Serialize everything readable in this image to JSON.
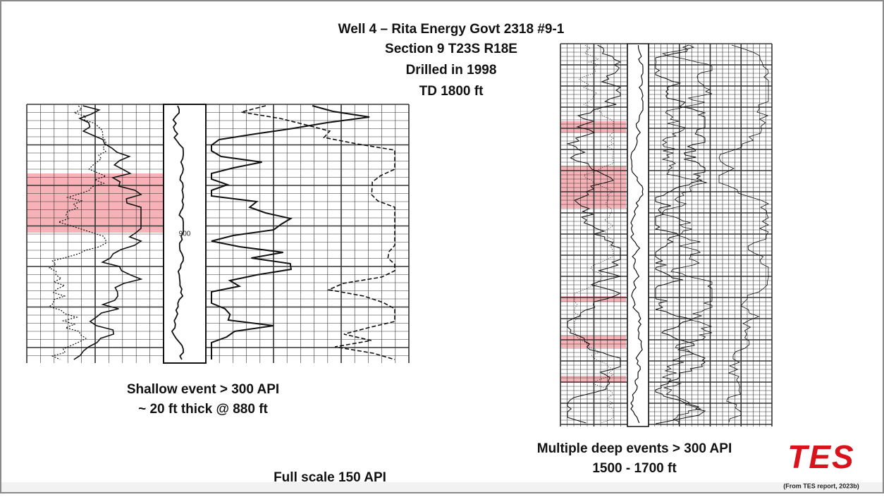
{
  "header": {
    "title_lines": [
      "Well 4 – Rita Energy Govt 2318 #9-1",
      "Section 9 T23S R18E",
      "Drilled in 1998",
      "TD 1800 ft"
    ]
  },
  "shallow_log": {
    "depth_label": "900",
    "caption_lines": [
      "Shallow event > 300 API",
      "~ 20 ft thick @ 880 ft"
    ]
  },
  "scale_note": "Full scale 150 API",
  "deep_log": {
    "caption_lines": [
      "Multiple deep events > 300 API",
      "1500 - 1700 ft"
    ]
  },
  "logo": {
    "text": "TES",
    "source": "(From TES report, 2023b)"
  }
}
